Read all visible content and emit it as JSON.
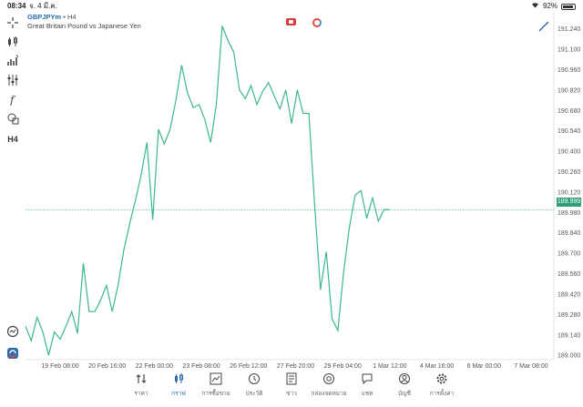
{
  "status": {
    "time": "08:34",
    "date": "จ. 4 มี.ค.",
    "battery": "92%",
    "battery_level": 0.92
  },
  "symbol": {
    "name": "GBPJPYm",
    "separator": "•",
    "timeframe": "H4",
    "description": "Great Britain Pound vs Japanese Yen"
  },
  "toolbar": {
    "timeframe_label": "H4"
  },
  "chart_data": {
    "type": "line",
    "title": "",
    "xlabel": "",
    "ylabel": "",
    "ylim": [
      188.97,
      191.35
    ],
    "y_ticks": [
      189.0,
      189.14,
      189.28,
      189.42,
      189.56,
      189.7,
      189.84,
      189.98,
      190.12,
      190.26,
      190.4,
      190.54,
      190.68,
      190.82,
      190.96,
      191.1,
      191.24
    ],
    "y_tick_labels": [
      "189.000",
      "189.140",
      "189.280",
      "189.420",
      "189.560",
      "189.700",
      "189.840",
      "189.980",
      "190.120",
      "190.260",
      "190.400",
      "190.540",
      "190.680",
      "190.820",
      "190.960",
      "191.100",
      "191.240"
    ],
    "x_tick_labels": [
      "19 Feb 08:00",
      "20 Feb 16:00",
      "22 Feb 00:00",
      "23 Feb 08:00",
      "26 Feb 12:00",
      "27 Feb 20:00",
      "29 Feb 04:00",
      "1 Mar 12:00",
      "4 Mar 16:00",
      "6 Mar 00:00",
      "7 Mar 08:00"
    ],
    "current_price": 189.999,
    "current_price_label": "189.999",
    "line_color": "#3cb88a",
    "series": [
      {
        "values": [
          189.2,
          189.1,
          189.26,
          189.16,
          189.0,
          189.16,
          189.11,
          189.2,
          189.3,
          189.15,
          189.63,
          189.3,
          189.3,
          189.38,
          189.48,
          189.3,
          189.48,
          189.72,
          189.9,
          190.06,
          190.24,
          190.46,
          189.93,
          190.55,
          190.45,
          190.55,
          190.75,
          190.99,
          190.8,
          190.7,
          190.72,
          190.62,
          190.46,
          190.72,
          191.26,
          191.16,
          191.08,
          190.82,
          190.76,
          190.85,
          190.72,
          190.81,
          190.87,
          190.78,
          190.69,
          190.82,
          190.59,
          190.82,
          190.66,
          190.66,
          190.02,
          189.45,
          189.71,
          189.25,
          189.17,
          189.57,
          189.88,
          190.1,
          190.13,
          189.94,
          190.08,
          189.92,
          190.0,
          189.999
        ]
      }
    ]
  },
  "nav": {
    "items": [
      {
        "label": "ราคา",
        "icon": "quotes-icon"
      },
      {
        "label": "กราฟ",
        "icon": "chart-icon"
      },
      {
        "label": "การซื้อขาย",
        "icon": "trade-icon"
      },
      {
        "label": "ประวัติ",
        "icon": "history-icon"
      },
      {
        "label": "ข่าว",
        "icon": "news-icon"
      },
      {
        "label": "กล่องจดหมาย",
        "icon": "mailbox-icon"
      },
      {
        "label": "แชท",
        "icon": "chat-icon"
      },
      {
        "label": "บัญชี",
        "icon": "account-icon"
      },
      {
        "label": "การตั้งค่า",
        "icon": "settings-icon"
      }
    ],
    "active_index": 1
  },
  "colors": {
    "accent": "#2b6cb0",
    "line": "#3cb88a",
    "price_tag": "#2e9e76",
    "grid": "#eeeeee"
  }
}
